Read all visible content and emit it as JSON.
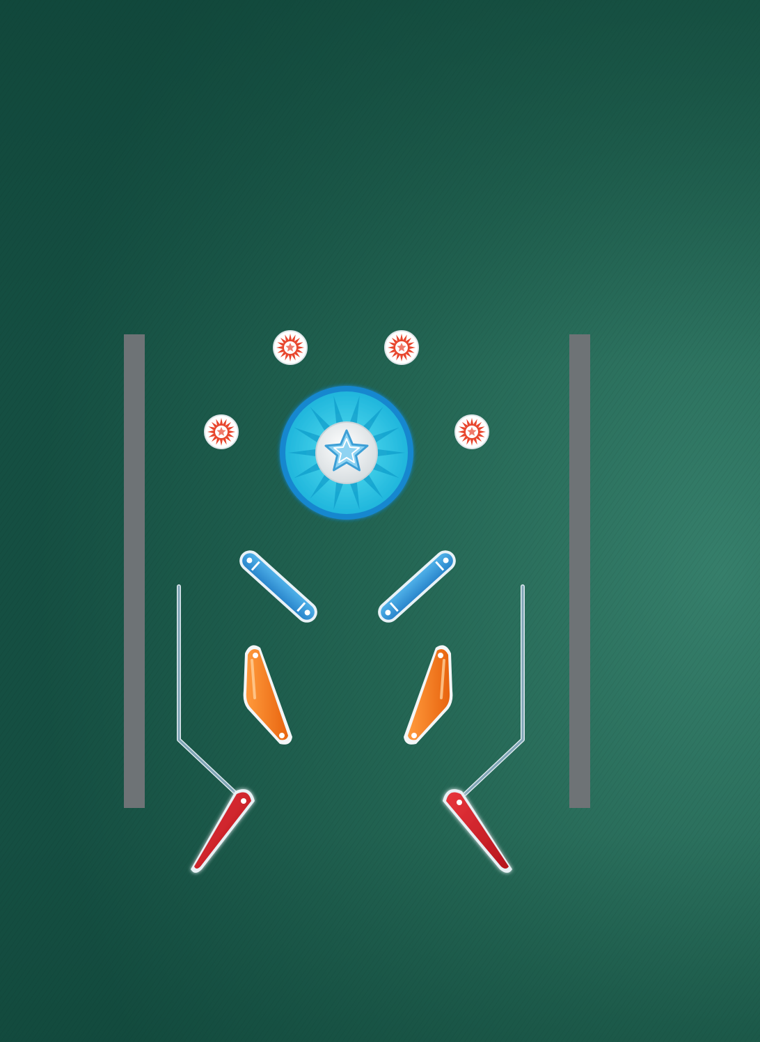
{
  "game": {
    "type": "pinball",
    "colors": {
      "felt_light": "#2f7a66",
      "felt_dark": "#114c3f",
      "rail": "#6e7376",
      "wire": "#8fb4c4",
      "target_red": "#e8472e",
      "target_ring": "#ffffff",
      "bumper_ring": "#1b8bd0",
      "bumper_face": "#2ec8e6",
      "bumper_rays": "#17a7d2",
      "bumper_center": "#f1f3f4",
      "star": "#4aa6d6",
      "lane_guide": "#3a9ad9",
      "slingshot": "#f47a20",
      "flipper": "#d4242c"
    },
    "targets": [
      {
        "name": "top-left",
        "icon": "sunburst-star-icon"
      },
      {
        "name": "top-right",
        "icon": "sunburst-star-icon"
      },
      {
        "name": "mid-left",
        "icon": "sunburst-star-icon"
      },
      {
        "name": "mid-right",
        "icon": "sunburst-star-icon"
      }
    ],
    "center_bumper": {
      "icon": "star-icon"
    },
    "flippers": [
      "left",
      "right"
    ],
    "slingshots": [
      "left",
      "right"
    ],
    "lane_guides": [
      "left",
      "right"
    ]
  }
}
